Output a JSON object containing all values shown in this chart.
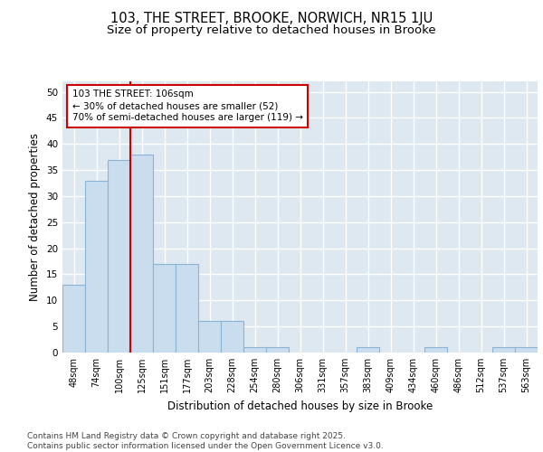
{
  "title_line1": "103, THE STREET, BROOKE, NORWICH, NR15 1JU",
  "title_line2": "Size of property relative to detached houses in Brooke",
  "xlabel": "Distribution of detached houses by size in Brooke",
  "ylabel": "Number of detached properties",
  "categories": [
    "48sqm",
    "74sqm",
    "100sqm",
    "125sqm",
    "151sqm",
    "177sqm",
    "203sqm",
    "228sqm",
    "254sqm",
    "280sqm",
    "306sqm",
    "331sqm",
    "357sqm",
    "383sqm",
    "409sqm",
    "434sqm",
    "460sqm",
    "486sqm",
    "512sqm",
    "537sqm",
    "563sqm"
  ],
  "values": [
    13,
    33,
    37,
    38,
    17,
    17,
    6,
    6,
    1,
    1,
    0,
    0,
    0,
    1,
    0,
    0,
    1,
    0,
    0,
    1,
    1
  ],
  "bar_color": "#c9ddef",
  "bar_edge_color": "#8ab4d4",
  "background_color": "#ffffff",
  "plot_bg_color": "#dde8f0",
  "grid_color": "#ffffff",
  "vline_color": "#cc0000",
  "vline_x_index": 2,
  "annotation_line1": "103 THE STREET: 106sqm",
  "annotation_line2": "← 30% of detached houses are smaller (52)",
  "annotation_line3": "70% of semi-detached houses are larger (119) →",
  "annotation_box_facecolor": "#ffffff",
  "annotation_box_edgecolor": "#cc0000",
  "ylim": [
    0,
    52
  ],
  "yticks": [
    0,
    5,
    10,
    15,
    20,
    25,
    30,
    35,
    40,
    45,
    50
  ],
  "footer_text": "Contains HM Land Registry data © Crown copyright and database right 2025.\nContains public sector information licensed under the Open Government Licence v3.0.",
  "title_fontsize": 10.5,
  "subtitle_fontsize": 9.5,
  "axis_label_fontsize": 8.5,
  "tick_fontsize": 7,
  "annotation_fontsize": 7.5,
  "footer_fontsize": 6.5
}
